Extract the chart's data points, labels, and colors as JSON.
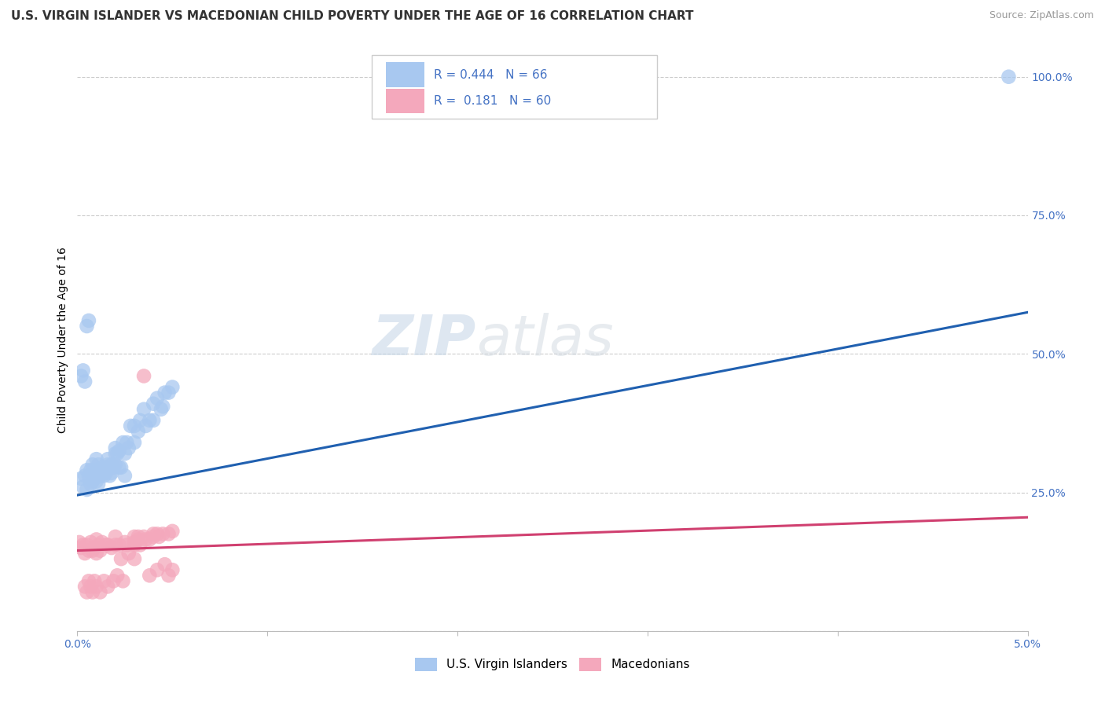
{
  "title": "U.S. VIRGIN ISLANDER VS MACEDONIAN CHILD POVERTY UNDER THE AGE OF 16 CORRELATION CHART",
  "source": "Source: ZipAtlas.com",
  "ylabel": "Child Poverty Under the Age of 16",
  "xlim": [
    0.0,
    0.05
  ],
  "ylim": [
    0.0,
    1.05
  ],
  "xticks": [
    0.0,
    0.01,
    0.02,
    0.03,
    0.04,
    0.05
  ],
  "xtick_labels": [
    "0.0%",
    "",
    "",
    "",
    "",
    "5.0%"
  ],
  "yticks": [
    0.0,
    0.25,
    0.5,
    0.75,
    1.0
  ],
  "ytick_labels": [
    "",
    "25.0%",
    "50.0%",
    "75.0%",
    "100.0%"
  ],
  "legend_labels": [
    "U.S. Virgin Islanders",
    "Macedonians"
  ],
  "blue_color": "#A8C8F0",
  "pink_color": "#F4A8BC",
  "blue_line_color": "#2060B0",
  "pink_line_color": "#D04070",
  "r_blue": 0.444,
  "n_blue": 66,
  "r_pink": 0.181,
  "n_pink": 60,
  "watermark_zip": "ZIP",
  "watermark_atlas": "atlas",
  "blue_scatter_x": [
    0.0002,
    0.0003,
    0.0004,
    0.0005,
    0.0005,
    0.0006,
    0.0007,
    0.0007,
    0.0008,
    0.0008,
    0.0009,
    0.0009,
    0.001,
    0.001,
    0.001,
    0.001,
    0.0011,
    0.0011,
    0.0012,
    0.0012,
    0.0013,
    0.0013,
    0.0014,
    0.0014,
    0.0015,
    0.0015,
    0.0016,
    0.0016,
    0.0017,
    0.0018,
    0.0018,
    0.0019,
    0.002,
    0.002,
    0.002,
    0.0021,
    0.0022,
    0.0022,
    0.0023,
    0.0024,
    0.0025,
    0.0025,
    0.0026,
    0.0027,
    0.0028,
    0.003,
    0.003,
    0.0032,
    0.0033,
    0.0035,
    0.0036,
    0.0038,
    0.004,
    0.004,
    0.0042,
    0.0044,
    0.0045,
    0.0046,
    0.0048,
    0.005,
    0.0002,
    0.0003,
    0.0004,
    0.0005,
    0.0006,
    0.049
  ],
  "blue_scatter_y": [
    0.275,
    0.26,
    0.28,
    0.29,
    0.255,
    0.28,
    0.265,
    0.29,
    0.3,
    0.27,
    0.28,
    0.275,
    0.27,
    0.29,
    0.31,
    0.28,
    0.265,
    0.3,
    0.28,
    0.29,
    0.285,
    0.295,
    0.28,
    0.29,
    0.285,
    0.295,
    0.3,
    0.31,
    0.28,
    0.285,
    0.3,
    0.295,
    0.3,
    0.32,
    0.33,
    0.32,
    0.325,
    0.295,
    0.295,
    0.34,
    0.28,
    0.32,
    0.34,
    0.33,
    0.37,
    0.37,
    0.34,
    0.36,
    0.38,
    0.4,
    0.37,
    0.38,
    0.38,
    0.41,
    0.42,
    0.4,
    0.405,
    0.43,
    0.43,
    0.44,
    0.46,
    0.47,
    0.45,
    0.55,
    0.56,
    1.0
  ],
  "pink_scatter_x": [
    0.0001,
    0.0002,
    0.0003,
    0.0004,
    0.0005,
    0.0006,
    0.0007,
    0.0008,
    0.0009,
    0.001,
    0.001,
    0.0011,
    0.0012,
    0.0013,
    0.0015,
    0.0016,
    0.0018,
    0.002,
    0.002,
    0.0022,
    0.0023,
    0.0025,
    0.0026,
    0.0027,
    0.003,
    0.003,
    0.0032,
    0.0033,
    0.0035,
    0.0036,
    0.0038,
    0.004,
    0.004,
    0.0042,
    0.0043,
    0.0045,
    0.0048,
    0.005,
    0.003,
    0.0032,
    0.0004,
    0.0005,
    0.0006,
    0.0007,
    0.0008,
    0.0009,
    0.001,
    0.0012,
    0.0014,
    0.0016,
    0.0019,
    0.0021,
    0.0024,
    0.003,
    0.0035,
    0.0038,
    0.0042,
    0.0046,
    0.0048,
    0.005
  ],
  "pink_scatter_y": [
    0.16,
    0.15,
    0.155,
    0.14,
    0.155,
    0.145,
    0.16,
    0.145,
    0.15,
    0.14,
    0.165,
    0.155,
    0.145,
    0.16,
    0.155,
    0.155,
    0.15,
    0.155,
    0.17,
    0.155,
    0.13,
    0.16,
    0.155,
    0.14,
    0.16,
    0.17,
    0.165,
    0.155,
    0.17,
    0.165,
    0.165,
    0.175,
    0.17,
    0.175,
    0.17,
    0.175,
    0.175,
    0.18,
    0.155,
    0.17,
    0.08,
    0.07,
    0.09,
    0.08,
    0.07,
    0.09,
    0.08,
    0.07,
    0.09,
    0.08,
    0.09,
    0.1,
    0.09,
    0.13,
    0.46,
    0.1,
    0.11,
    0.12,
    0.1,
    0.11
  ],
  "blue_line_x": [
    0.0,
    0.05
  ],
  "blue_line_y": [
    0.245,
    0.575
  ],
  "pink_line_x": [
    0.0,
    0.05
  ],
  "pink_line_y": [
    0.145,
    0.205
  ],
  "background_color": "#FFFFFF",
  "grid_color": "#CCCCCC",
  "title_fontsize": 11,
  "tick_fontsize": 10,
  "tick_color": "#4472C4"
}
